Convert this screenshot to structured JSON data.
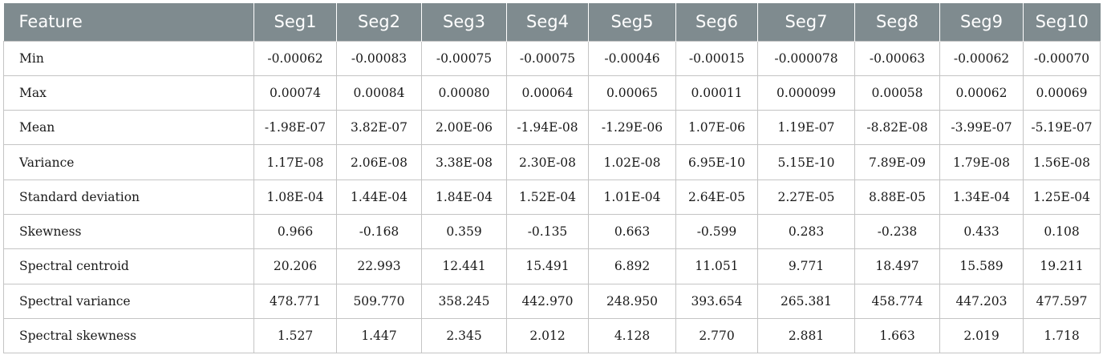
{
  "table": {
    "headers": [
      "Feature",
      "Seg1",
      "Seg2",
      "Seg3",
      "Seg4",
      "Seg5",
      "Seg6",
      "Seg7",
      "Seg8",
      "Seg9",
      "Seg10"
    ],
    "rows": [
      {
        "feature": "Min",
        "values": [
          "-0.00062",
          "-0.00083",
          "-0.00075",
          "-0.00075",
          "-0.00046",
          "-0.00015",
          "-0.000078",
          "-0.00063",
          "-0.00062",
          "-0.00070"
        ]
      },
      {
        "feature": "Max",
        "values": [
          "0.00074",
          "0.00084",
          "0.00080",
          "0.00064",
          "0.00065",
          "0.00011",
          "0.000099",
          "0.00058",
          "0.00062",
          "0.00069"
        ]
      },
      {
        "feature": "Mean",
        "values": [
          "-1.98E-07",
          "3.82E-07",
          "2.00E-06",
          "-1.94E-08",
          "-1.29E-06",
          "1.07E-06",
          "1.19E-07",
          "-8.82E-08",
          "-3.99E-07",
          "-5.19E-07"
        ]
      },
      {
        "feature": "Variance",
        "values": [
          "1.17E-08",
          "2.06E-08",
          "3.38E-08",
          "2.30E-08",
          "1.02E-08",
          "6.95E-10",
          "5.15E-10",
          "7.89E-09",
          "1.79E-08",
          "1.56E-08"
        ]
      },
      {
        "feature": "Standard deviation",
        "values": [
          "1.08E-04",
          "1.44E-04",
          "1.84E-04",
          "1.52E-04",
          "1.01E-04",
          "2.64E-05",
          "2.27E-05",
          "8.88E-05",
          "1.34E-04",
          "1.25E-04"
        ]
      },
      {
        "feature": "Skewness",
        "values": [
          "0.966",
          "-0.168",
          "0.359",
          "-0.135",
          "0.663",
          "-0.599",
          "0.283",
          "-0.238",
          "0.433",
          "0.108"
        ]
      },
      {
        "feature": "Spectral centroid",
        "values": [
          "20.206",
          "22.993",
          "12.441",
          "15.491",
          "6.892",
          "11.051",
          "9.771",
          "18.497",
          "15.589",
          "19.211"
        ]
      },
      {
        "feature": "Spectral variance",
        "values": [
          "478.771",
          "509.770",
          "358.245",
          "442.970",
          "248.950",
          "393.654",
          "265.381",
          "458.774",
          "447.203",
          "477.597"
        ]
      },
      {
        "feature": "Spectral skewness",
        "values": [
          "1.527",
          "1.447",
          "2.345",
          "2.012",
          "4.128",
          "2.770",
          "2.881",
          "1.663",
          "2.019",
          "1.718"
        ]
      }
    ]
  },
  "colors": {
    "header_background": "#7f8b8f",
    "header_text": "#ffffff",
    "grid_line": "#c4c4c4",
    "body_text": "#1a1a1a"
  }
}
